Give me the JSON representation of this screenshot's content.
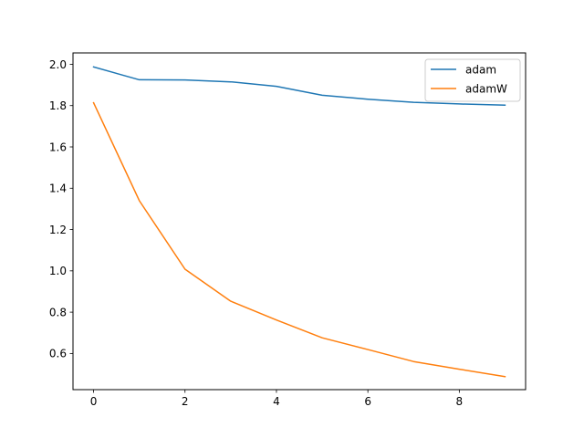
{
  "chart_data": {
    "type": "line",
    "title": "",
    "xlabel": "",
    "ylabel": "",
    "x": [
      0,
      1,
      2,
      3,
      4,
      5,
      6,
      7,
      8,
      9
    ],
    "xlim": [
      -0.45,
      9.45
    ],
    "ylim": [
      0.425,
      2.055
    ],
    "xticks": [
      0,
      2,
      4,
      6,
      8
    ],
    "yticks": [
      0.6,
      0.8,
      1.0,
      1.2,
      1.4,
      1.6,
      1.8,
      2.0
    ],
    "xtick_labels": [
      "0",
      "2",
      "4",
      "6",
      "8"
    ],
    "ytick_labels": [
      "0.6",
      "0.8",
      "1.0",
      "1.2",
      "1.4",
      "1.6",
      "1.8",
      "2.0"
    ],
    "grid": false,
    "legend_position": "top-right",
    "series": [
      {
        "name": "adam",
        "color": "#1f77b4",
        "values": [
          1.987,
          1.925,
          1.924,
          1.915,
          1.893,
          1.85,
          1.831,
          1.816,
          1.808,
          1.802
        ]
      },
      {
        "name": "adamW",
        "color": "#ff7f0e",
        "values": [
          1.814,
          1.34,
          1.008,
          0.853,
          0.762,
          0.676,
          0.619,
          0.561,
          0.524,
          0.488
        ]
      }
    ]
  }
}
